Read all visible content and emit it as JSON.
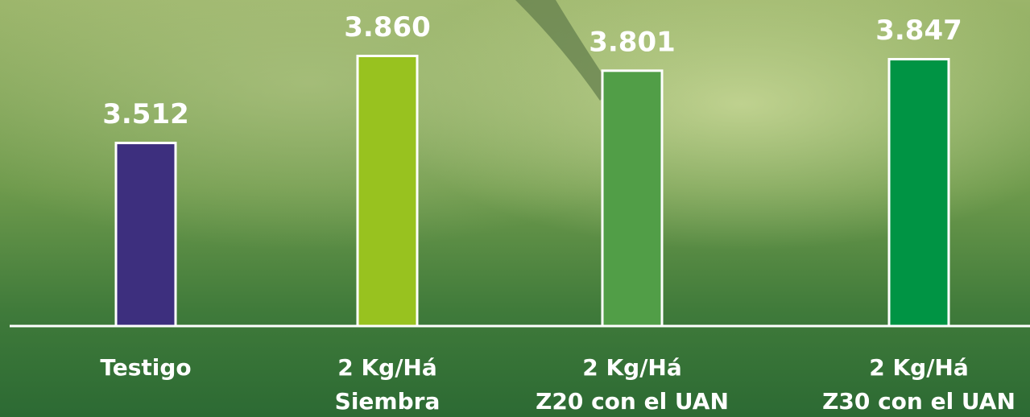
{
  "chart_data": {
    "type": "bar",
    "categories": [
      [
        "Testigo"
      ],
      [
        "2 Kg/Há",
        "Siembra"
      ],
      [
        "2 Kg/Há",
        "Z20 con el UAN"
      ],
      [
        "2 Kg/Há",
        "Z30 con el UAN"
      ]
    ],
    "values": [
      3512,
      3860,
      3801,
      3847
    ],
    "value_labels": [
      "3.512",
      "3.860",
      "3.801",
      "3.847"
    ],
    "colors": [
      "#3d2f7e",
      "#98c21f",
      "#519e47",
      "#009444"
    ],
    "ylim": [
      2780,
      4000
    ]
  }
}
